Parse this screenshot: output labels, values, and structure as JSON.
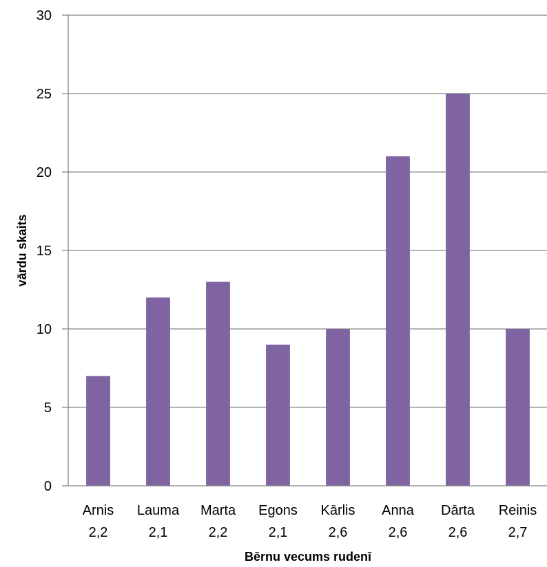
{
  "chart_data": {
    "type": "bar",
    "title": "",
    "xlabel": "Bērnu vecums rudenī",
    "ylabel": "vārdu skaits",
    "categories": [
      [
        "Arnis",
        "2,2"
      ],
      [
        "Lauma",
        "2,1"
      ],
      [
        "Marta",
        "2,2"
      ],
      [
        "Egons",
        "2,1"
      ],
      [
        "Kārlis",
        "2,6"
      ],
      [
        "Anna",
        "2,6"
      ],
      [
        "Dārta",
        "2,6"
      ],
      [
        "Reinis",
        "2,7"
      ]
    ],
    "values": [
      7,
      12,
      13,
      9,
      10,
      21,
      25,
      10
    ],
    "ylim": [
      0,
      30
    ],
    "yticks": [
      0,
      5,
      10,
      15,
      20,
      25,
      30
    ],
    "grid": true,
    "legend": "none",
    "bar_color": "#8064A2",
    "grid_color": "#868686",
    "axis_color": "#868686"
  }
}
